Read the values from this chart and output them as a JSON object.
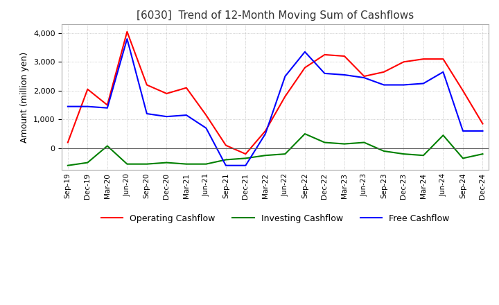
{
  "title": "[6030]  Trend of 12-Month Moving Sum of Cashflows",
  "ylabel": "Amount (million yen)",
  "legend": [
    "Operating Cashflow",
    "Investing Cashflow",
    "Free Cashflow"
  ],
  "colors": [
    "#ff0000",
    "#008000",
    "#0000ff"
  ],
  "x_labels": [
    "Sep-19",
    "Dec-19",
    "Mar-20",
    "Jun-20",
    "Sep-20",
    "Dec-20",
    "Mar-21",
    "Jun-21",
    "Sep-21",
    "Dec-21",
    "Mar-22",
    "Jun-22",
    "Sep-22",
    "Dec-22",
    "Mar-23",
    "Jun-23",
    "Sep-23",
    "Dec-23",
    "Mar-24",
    "Jun-24",
    "Sep-24",
    "Dec-24"
  ],
  "operating": [
    200,
    2050,
    1500,
    4050,
    2200,
    1900,
    2100,
    1150,
    100,
    -200,
    600,
    1800,
    2800,
    3250,
    3200,
    2500,
    2650,
    3000,
    3100,
    3100,
    2000,
    850
  ],
  "investing": [
    -600,
    -500,
    80,
    -550,
    -550,
    -500,
    -550,
    -550,
    -400,
    -350,
    -250,
    -200,
    500,
    200,
    150,
    200,
    -100,
    -200,
    -250,
    450,
    -350,
    -200
  ],
  "free": [
    1450,
    1450,
    1400,
    3800,
    1200,
    1100,
    1150,
    700,
    -600,
    -600,
    500,
    2500,
    3350,
    2600,
    2550,
    2450,
    2200,
    2200,
    2250,
    2650,
    600,
    600
  ],
  "ylim": [
    -750,
    4300
  ],
  "yticks": [
    0,
    1000,
    2000,
    3000,
    4000
  ],
  "background_color": "#ffffff",
  "grid_color": "#aaaaaa"
}
